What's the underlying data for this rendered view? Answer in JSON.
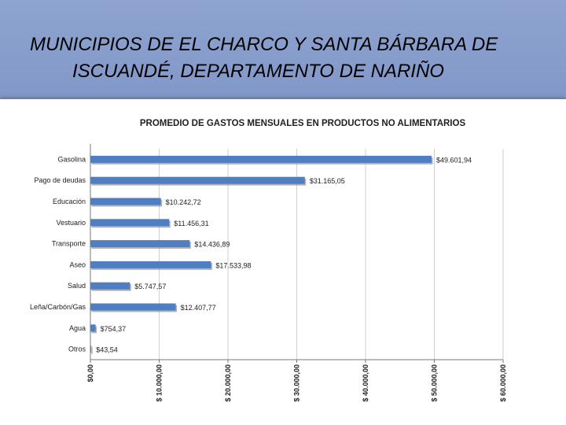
{
  "slide": {
    "title_line1": "MUNICIPIOS DE EL CHARCO Y SANTA BÁRBARA DE",
    "title_line2": "ISCUANDÉ, DEPARTAMENTO DE NARIÑO"
  },
  "colors": {
    "bar": "#4f7fc2",
    "bar_shadow": "#9a9a9a",
    "axis": "#777777",
    "background": "#7f95c7"
  },
  "chart_data": {
    "type": "bar",
    "orientation": "horizontal",
    "title": "PROMEDIO DE GASTOS  MENSUALES EN PRODUCTOS NO ALIMENTARIOS",
    "categories": [
      "Gasolina",
      "Pago de deudas",
      "Educación",
      "Vestuario",
      "Transporte",
      "Aseo",
      "Salud",
      "Leña/Carbón/Gas",
      "Agua",
      "Otros"
    ],
    "values": [
      49601.94,
      31165.05,
      10242.72,
      11456.31,
      14436.89,
      17533.98,
      5747.57,
      12407.77,
      754.37,
      43.54
    ],
    "value_labels": [
      "$49.601,94",
      "$31.165,05",
      "$10.242,72",
      "$11.456,31",
      "$14.436,89",
      "$17.533,98",
      "$5.747,57",
      "$12.407,77",
      "$754,37",
      "$43,54"
    ],
    "xlim": [
      0,
      60000
    ],
    "ticks": [
      0,
      10000,
      20000,
      30000,
      40000,
      50000,
      60000
    ],
    "tick_labels": [
      "$0,00",
      "$ 10.000,00",
      "$ 20.000,00",
      "$ 30.000,00",
      "$ 40.000,00",
      "$ 50.000,00",
      "$ 60.000,00"
    ],
    "grid": true,
    "legend": "none"
  }
}
